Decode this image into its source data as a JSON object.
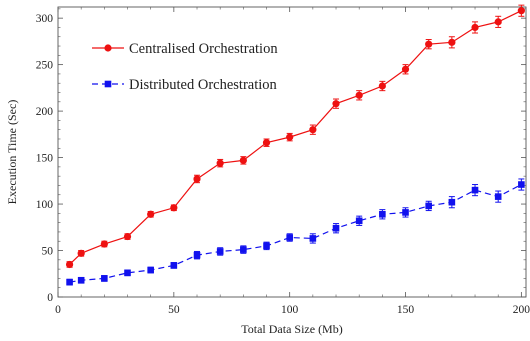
{
  "chart_data": {
    "type": "line",
    "title": "",
    "xlabel": "Total Data Size (Mb)",
    "ylabel": "Execution Time (Sec)",
    "xlim": [
      0,
      202
    ],
    "ylim": [
      0,
      312
    ],
    "xticks": [
      0,
      50,
      100,
      150,
      200
    ],
    "yticks": [
      0,
      50,
      100,
      150,
      200,
      250,
      300
    ],
    "grid": false,
    "legend_position": "top-left",
    "error_bars": true,
    "series": [
      {
        "name": "Centralised Orchestration",
        "color": "#ee1111",
        "line_style": "solid",
        "marker": "circle",
        "x": [
          5,
          10,
          20,
          30,
          40,
          50,
          60,
          70,
          80,
          90,
          100,
          110,
          120,
          130,
          140,
          150,
          160,
          170,
          180,
          190,
          200
        ],
        "y": [
          35,
          47,
          57,
          65,
          89,
          96,
          127,
          144,
          147,
          166,
          172,
          180,
          208,
          217,
          227,
          245,
          272,
          274,
          290,
          296,
          308
        ],
        "error": [
          3,
          3,
          3,
          3,
          3,
          3,
          4,
          4,
          4,
          4,
          4,
          5,
          5,
          5,
          5,
          5,
          5,
          6,
          6,
          6,
          6
        ]
      },
      {
        "name": "Distributed Orchestration",
        "color": "#1111ee",
        "line_style": "dashed",
        "marker": "square",
        "x": [
          5,
          10,
          20,
          30,
          40,
          50,
          60,
          70,
          80,
          90,
          100,
          110,
          120,
          130,
          140,
          150,
          160,
          170,
          180,
          190,
          200
        ],
        "y": [
          16,
          18,
          20,
          26,
          29,
          34,
          45,
          49,
          51,
          55,
          64,
          63,
          74,
          82,
          89,
          91,
          98,
          102,
          115,
          108,
          121
        ],
        "error": [
          3,
          3,
          3,
          3,
          3,
          3,
          4,
          4,
          4,
          4,
          4,
          5,
          5,
          5,
          5,
          5,
          5,
          6,
          6,
          6,
          6
        ]
      }
    ]
  }
}
